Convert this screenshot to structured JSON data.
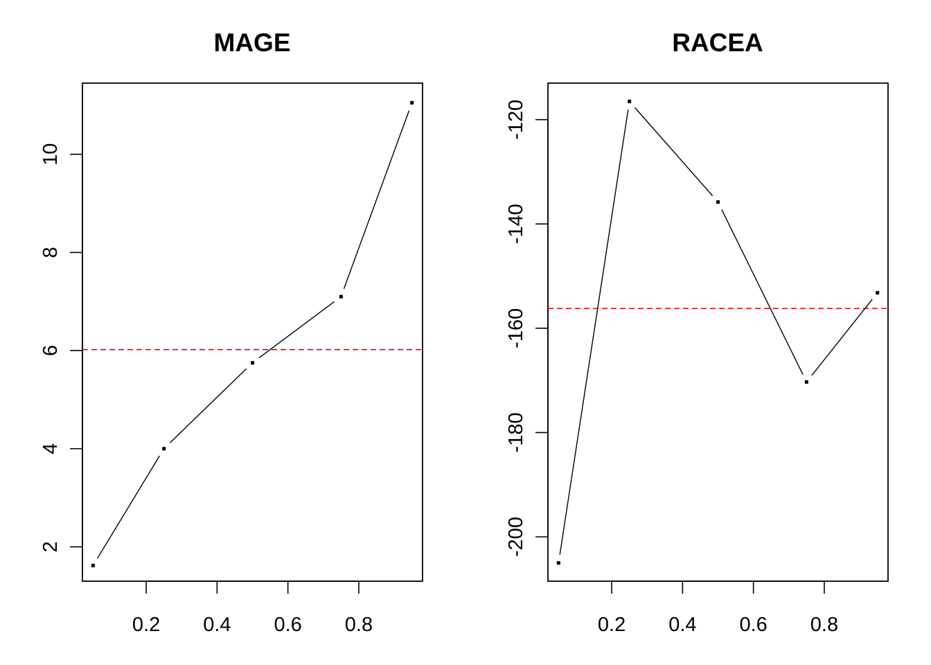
{
  "chart_data": [
    {
      "type": "line",
      "title": "MAGE",
      "xlabel": "",
      "ylabel": "",
      "x": [
        0.05,
        0.25,
        0.5,
        0.75,
        0.95
      ],
      "series": [
        {
          "values": [
            1.62,
            4.0,
            5.75,
            7.1,
            11.05
          ]
        }
      ],
      "reference_line": {
        "y": 6.02,
        "style": "dashed",
        "color": "#dd0000"
      },
      "xlim": [
        0.02,
        0.98
      ],
      "ylim": [
        1.3,
        11.45
      ],
      "x_ticks": [
        0.2,
        0.4,
        0.6,
        0.8
      ],
      "x_tick_labels": [
        "0.2",
        "0.4",
        "0.6",
        "0.8"
      ],
      "y_ticks": [
        2,
        4,
        6,
        8,
        10
      ],
      "y_tick_labels": [
        "2",
        "4",
        "6",
        "8",
        "10"
      ],
      "grid": false,
      "line_color": "#000000"
    },
    {
      "type": "line",
      "title": "RACEA",
      "xlabel": "",
      "ylabel": "",
      "x": [
        0.05,
        0.25,
        0.5,
        0.75,
        0.95
      ],
      "series": [
        {
          "values": [
            -205,
            -116.5,
            -135.8,
            -170.3,
            -153.2
          ]
        }
      ],
      "reference_line": {
        "y": -156.2,
        "style": "dashed",
        "color": "#dd0000"
      },
      "xlim": [
        0.02,
        0.98
      ],
      "ylim": [
        -208.5,
        -113.0
      ],
      "x_ticks": [
        0.2,
        0.4,
        0.6,
        0.8
      ],
      "x_tick_labels": [
        "0.2",
        "0.4",
        "0.6",
        "0.8"
      ],
      "y_ticks": [
        -120,
        -140,
        -160,
        -180,
        -200
      ],
      "y_tick_labels": [
        "-120",
        "-140",
        "-160",
        "-180",
        "-200"
      ],
      "grid": false,
      "line_color": "#000000"
    }
  ]
}
